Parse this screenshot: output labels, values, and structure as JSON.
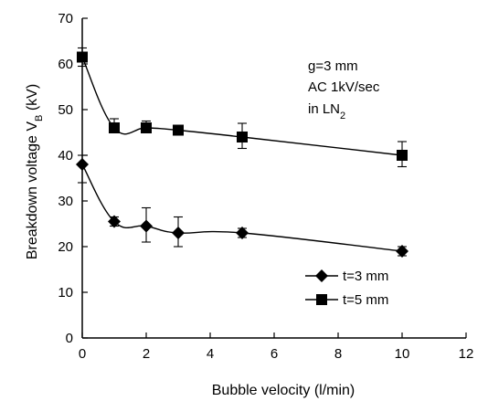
{
  "chart_data": {
    "type": "line",
    "title": "",
    "xlabel": "Bubble velocity (l/min)",
    "ylabel": "Breakdown voltage V",
    "ylabel_subscript": "B",
    "ylabel_unit": " (kV)",
    "xlim": [
      0,
      12
    ],
    "ylim": [
      0,
      70
    ],
    "xticks": [
      "0",
      "2",
      "4",
      "6",
      "8",
      "10",
      "12"
    ],
    "yticks": [
      "0",
      "10",
      "20",
      "30",
      "40",
      "50",
      "60",
      "70"
    ],
    "grid": false,
    "legend_position": "bottom-right",
    "annotations": [
      {
        "text": "g=3 mm"
      },
      {
        "text": "AC 1kV/sec"
      },
      {
        "text": "in LN",
        "subscript": "2"
      }
    ],
    "series": [
      {
        "name": "t=3 mm",
        "marker": "diamond",
        "x": [
          0,
          1,
          2,
          3,
          5,
          10
        ],
        "y": [
          38,
          25.5,
          24.5,
          23,
          23,
          19
        ],
        "err_low": [
          34,
          24.5,
          21,
          20,
          22,
          18
        ],
        "err_high": [
          40,
          26.5,
          28.5,
          26.5,
          24,
          20
        ]
      },
      {
        "name": "t=5 mm",
        "marker": "square",
        "x": [
          0,
          1,
          2,
          3,
          5,
          10
        ],
        "y": [
          61.5,
          46,
          46,
          45.5,
          44,
          40
        ],
        "err_low": [
          59.5,
          45,
          45,
          44.5,
          41.5,
          37.5
        ],
        "err_high": [
          63.5,
          48,
          47.5,
          46.5,
          47,
          43
        ]
      }
    ]
  }
}
